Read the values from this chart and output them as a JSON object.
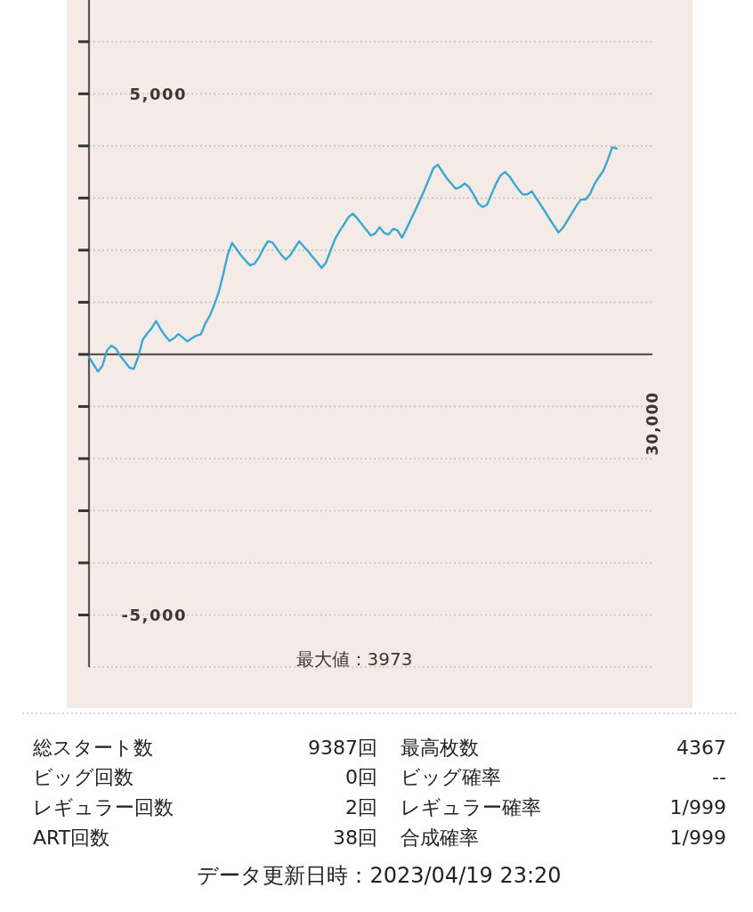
{
  "chart_data": {
    "type": "line",
    "color": "#3aa8d4",
    "categories": [
      null,
      null,
      null,
      null,
      null,
      null,
      null,
      null,
      null,
      null,
      null,
      null,
      null,
      null,
      null,
      null,
      null,
      null,
      null,
      null,
      null,
      null,
      null,
      null,
      null,
      null,
      null,
      null,
      null,
      null,
      null,
      null,
      null,
      null,
      null,
      null,
      null,
      null,
      null,
      null,
      null,
      null,
      null,
      null,
      null,
      null,
      null,
      null,
      null,
      null,
      null,
      null,
      null,
      null,
      null,
      null,
      null,
      null,
      null,
      null,
      null,
      null,
      null,
      null,
      null,
      null,
      null,
      null,
      null,
      null,
      null,
      null,
      null,
      null,
      null,
      null,
      null,
      null,
      null,
      null,
      null,
      null,
      null,
      null,
      null,
      null,
      null,
      null,
      null,
      null,
      null,
      null,
      null,
      null,
      null,
      null,
      null,
      null,
      null,
      null,
      null,
      null,
      null,
      null,
      null,
      null,
      null,
      null,
      null,
      null,
      null,
      null,
      null,
      null,
      null,
      null,
      null,
      null,
      null,
      null,
      null,
      null,
      null,
      null,
      null,
      null,
      null
    ],
    "values": [
      -50,
      -190,
      -330,
      -220,
      70,
      170,
      110,
      -30,
      -140,
      -250,
      -280,
      -50,
      280,
      400,
      500,
      640,
      490,
      360,
      260,
      310,
      390,
      320,
      250,
      310,
      360,
      380,
      590,
      740,
      950,
      1190,
      1530,
      1910,
      2140,
      2020,
      1900,
      1800,
      1710,
      1740,
      1860,
      2030,
      2170,
      2150,
      2030,
      1910,
      1820,
      1900,
      2040,
      2170,
      2070,
      1980,
      1870,
      1770,
      1660,
      1760,
      1990,
      2210,
      2360,
      2490,
      2630,
      2700,
      2610,
      2500,
      2390,
      2280,
      2320,
      2440,
      2330,
      2300,
      2410,
      2380,
      2240,
      2410,
      2590,
      2770,
      2960,
      3150,
      3360,
      3570,
      3640,
      3510,
      3380,
      3280,
      3180,
      3210,
      3280,
      3210,
      3070,
      2900,
      2830,
      2870,
      3070,
      3270,
      3430,
      3500,
      3420,
      3290,
      3170,
      3070,
      3070,
      3130,
      3000,
      2870,
      2740,
      2600,
      2470,
      2340,
      2430,
      2570,
      2710,
      2850,
      2970,
      2970,
      3070,
      3260,
      3400,
      3520,
      3730,
      3973,
      3950,
      null,
      null,
      null,
      null,
      null,
      null,
      null,
      null
    ],
    "ylim": [
      -6000,
      6800
    ],
    "yticks": [
      {
        "value": -5000,
        "label": "-5,000"
      },
      {
        "value": -4000,
        "label": null
      },
      {
        "value": -3000,
        "label": null
      },
      {
        "value": -2000,
        "label": null
      },
      {
        "value": -1000,
        "label": null
      },
      {
        "value": 0,
        "label": null
      },
      {
        "value": 1000,
        "label": null
      },
      {
        "value": 2000,
        "label": null
      },
      {
        "value": 3000,
        "label": null
      },
      {
        "value": 4000,
        "label": null
      },
      {
        "value": 5000,
        "label": "5,000"
      },
      {
        "value": 6000,
        "label": null
      }
    ],
    "grid": "y",
    "annotations": [
      "30,000",
      "最大値：3973",
      "総スタート数",
      "9387回",
      "最高枚数",
      "4367",
      "ビッグ回数",
      "0回",
      "ビッグ確率",
      "--",
      "レギュラー回数",
      "2回",
      "レギュラー確率",
      "1/999",
      "ART回数",
      "38回",
      "合成確率",
      "1/999",
      "データ更新日時：2023/04/19 23:20"
    ]
  }
}
